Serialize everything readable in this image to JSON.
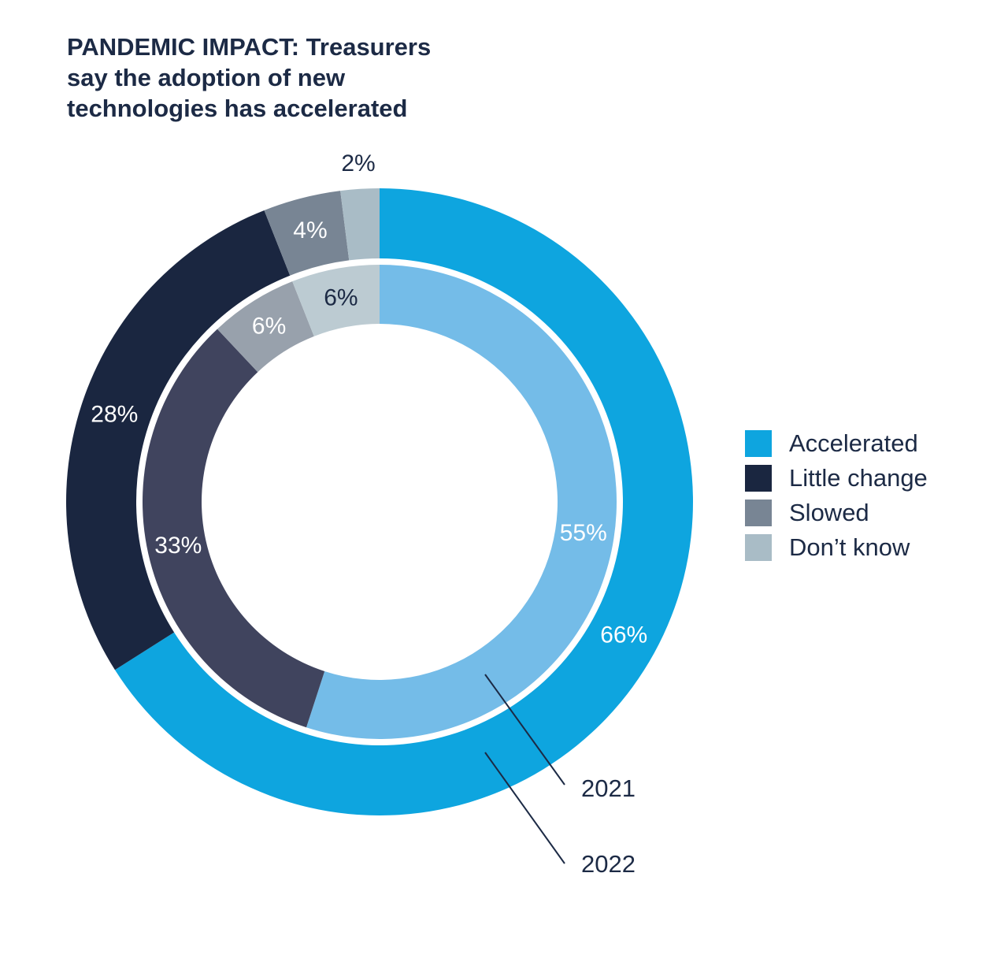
{
  "title": {
    "line1": "PANDEMIC IMPACT: Treasurers",
    "line2": "say the adoption of new",
    "line3": "technologies has accelerated"
  },
  "legend": [
    {
      "label": "Accelerated",
      "color": "#0ea5df"
    },
    {
      "label": "Little change",
      "color": "#1a2640"
    },
    {
      "label": "Slowed",
      "color": "#788594"
    },
    {
      "label": "Don’t know",
      "color": "#a9bcc6"
    }
  ],
  "chart_data": {
    "type": "pie",
    "subtype": "nested-donut",
    "title": "PANDEMIC IMPACT: Treasurers say the adoption of new technologies has accelerated",
    "categories": [
      "Accelerated",
      "Little change",
      "Slowed",
      "Don’t know"
    ],
    "series": [
      {
        "name": "2022",
        "ring": "outer",
        "values": [
          66,
          28,
          4,
          2
        ],
        "labels": [
          "66%",
          "28%",
          "4%",
          "2%"
        ],
        "colors": [
          "#0ea5df",
          "#1a2640",
          "#788594",
          "#a9bcc6"
        ],
        "label_colors": [
          "#ffffff",
          "#ffffff",
          "#ffffff",
          "#1c2a45"
        ]
      },
      {
        "name": "2021",
        "ring": "inner",
        "values": [
          55,
          33,
          6,
          6
        ],
        "labels": [
          "55%",
          "33%",
          "6%",
          "6%"
        ],
        "colors": [
          "#74bce8",
          "#40445e",
          "#98a1ac",
          "#bccbd2"
        ],
        "label_colors": [
          "#ffffff",
          "#ffffff",
          "#ffffff",
          "#1c2a45"
        ]
      }
    ]
  }
}
